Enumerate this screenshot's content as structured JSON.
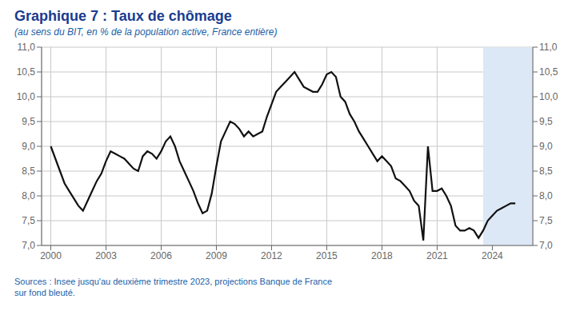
{
  "chart_data": {
    "type": "line",
    "title": "Graphique 7 : Taux de chômage",
    "subtitle": "(au sens du BIT, en % de la population active, France entière)",
    "source": "Sources : Insee jusqu'au deuxième trimestre 2023, projections Banque de France\nsur fond bleuté.",
    "color": "#111111",
    "grid": true,
    "shading": {
      "start": 2023.5,
      "end": 2026.2,
      "color": "#dce8f5"
    },
    "xlim": [
      1999.5,
      2026.2
    ],
    "xticks": [
      2000,
      2003,
      2006,
      2009,
      2012,
      2015,
      2018,
      2021,
      2024
    ],
    "ylim": [
      7.0,
      11.0
    ],
    "yticks": [
      {
        "value": 7.0,
        "label": "7,0"
      },
      {
        "value": 7.5,
        "label": "7,5"
      },
      {
        "value": 8.0,
        "label": "8,0"
      },
      {
        "value": 8.5,
        "label": "8,5"
      },
      {
        "value": 9.0,
        "label": "9,0"
      },
      {
        "value": 9.5,
        "label": "9,5"
      },
      {
        "value": 10.0,
        "label": "10,0"
      },
      {
        "value": 10.5,
        "label": "10,5"
      },
      {
        "value": 11.0,
        "label": "11,0"
      }
    ],
    "y2lim": [
      7.0,
      11.0
    ],
    "y2ticks": [
      {
        "value": 7.0,
        "label": "7,0"
      },
      {
        "value": 7.5,
        "label": "7,5"
      },
      {
        "value": 8.0,
        "label": "8,0"
      },
      {
        "value": 8.5,
        "label": "8,5"
      },
      {
        "value": 9.0,
        "label": "9,0"
      },
      {
        "value": 9.5,
        "label": "9,5"
      },
      {
        "value": 10.0,
        "label": "10,0"
      },
      {
        "value": 10.5,
        "label": "10,5"
      },
      {
        "value": 11.0,
        "label": "11,0"
      }
    ],
    "x": [
      2000,
      2000.25,
      2000.5,
      2000.75,
      2001,
      2001.25,
      2001.5,
      2001.75,
      2002,
      2002.25,
      2002.5,
      2002.75,
      2003,
      2003.25,
      2003.5,
      2003.75,
      2004,
      2004.25,
      2004.5,
      2004.75,
      2005,
      2005.25,
      2005.5,
      2005.75,
      2006,
      2006.25,
      2006.5,
      2006.75,
      2007,
      2007.25,
      2007.5,
      2007.75,
      2008,
      2008.25,
      2008.5,
      2008.75,
      2009,
      2009.25,
      2009.5,
      2009.75,
      2010,
      2010.25,
      2010.5,
      2010.75,
      2011,
      2011.25,
      2011.5,
      2011.75,
      2012,
      2012.25,
      2012.5,
      2012.75,
      2013,
      2013.25,
      2013.5,
      2013.75,
      2014,
      2014.25,
      2014.5,
      2014.75,
      2015,
      2015.25,
      2015.5,
      2015.75,
      2016,
      2016.25,
      2016.5,
      2016.75,
      2017,
      2017.25,
      2017.5,
      2017.75,
      2018,
      2018.25,
      2018.5,
      2018.75,
      2019,
      2019.25,
      2019.5,
      2019.75,
      2020,
      2020.25,
      2020.5,
      2020.75,
      2021,
      2021.25,
      2021.5,
      2021.75,
      2022,
      2022.25,
      2022.5,
      2022.75,
      2023,
      2023.25,
      2023.5,
      2023.75,
      2024,
      2024.25,
      2024.5,
      2024.75,
      2025,
      2025.25
    ],
    "values": [
      9.0,
      8.75,
      8.5,
      8.25,
      8.1,
      7.95,
      7.8,
      7.7,
      7.9,
      8.1,
      8.3,
      8.45,
      8.7,
      8.9,
      8.85,
      8.8,
      8.75,
      8.65,
      8.55,
      8.5,
      8.8,
      8.9,
      8.85,
      8.75,
      8.9,
      9.1,
      9.2,
      9.0,
      8.7,
      8.5,
      8.3,
      8.1,
      7.85,
      7.65,
      7.7,
      8.05,
      8.6,
      9.1,
      9.3,
      9.5,
      9.45,
      9.35,
      9.2,
      9.3,
      9.2,
      9.25,
      9.3,
      9.6,
      9.85,
      10.1,
      10.2,
      10.3,
      10.4,
      10.5,
      10.35,
      10.2,
      10.15,
      10.1,
      10.1,
      10.25,
      10.45,
      10.5,
      10.4,
      10.0,
      9.9,
      9.65,
      9.5,
      9.3,
      9.15,
      9.0,
      8.85,
      8.7,
      8.8,
      8.7,
      8.6,
      8.35,
      8.3,
      8.2,
      8.1,
      7.9,
      7.8,
      7.1,
      9.0,
      8.1,
      8.1,
      8.15,
      8.0,
      7.8,
      7.4,
      7.3,
      7.3,
      7.35,
      7.3,
      7.15,
      7.3,
      7.5,
      7.6,
      7.7,
      7.75,
      7.8,
      7.85,
      7.85
    ]
  }
}
